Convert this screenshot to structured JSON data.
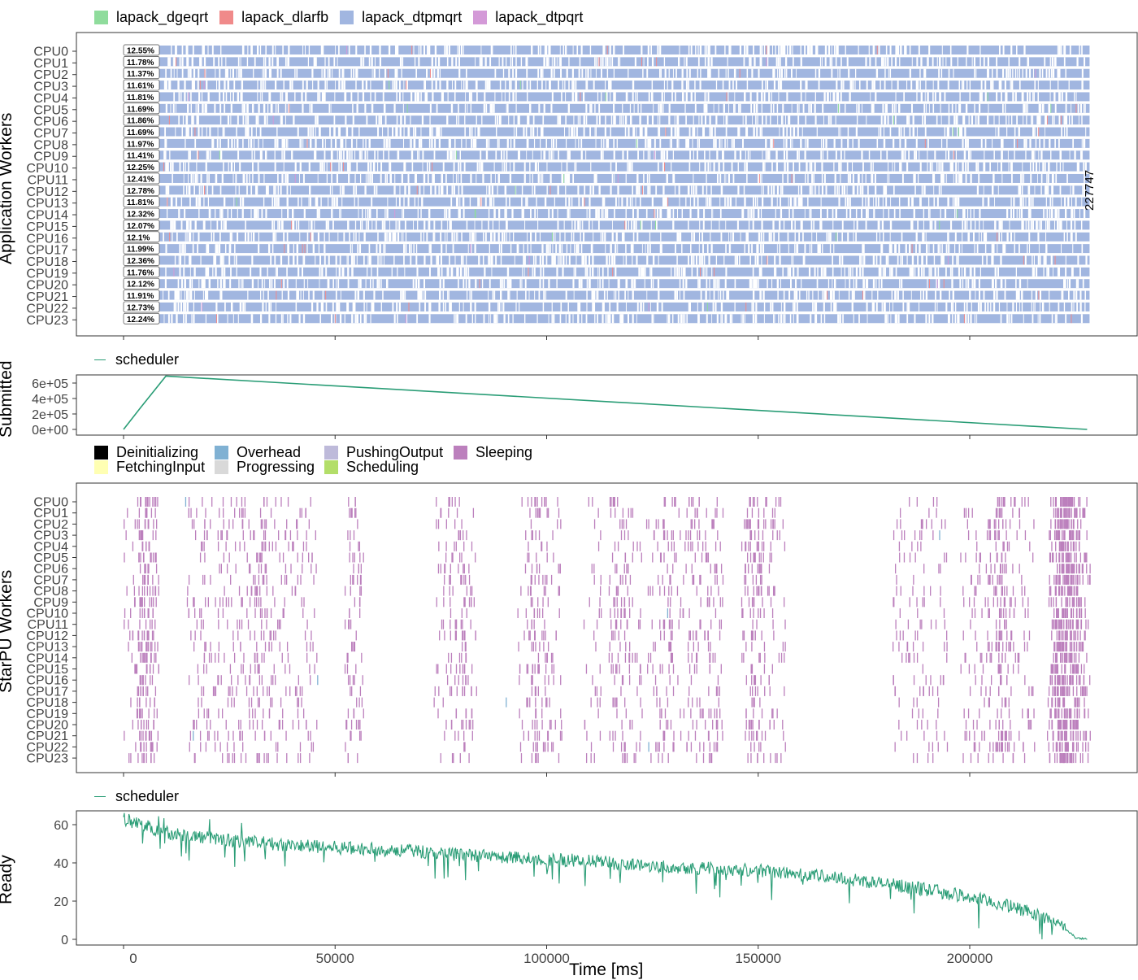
{
  "colors": {
    "lapack_dgeqrt": "#8fdc9c",
    "lapack_dlarfb": "#f08a8a",
    "lapack_dtpmqrt": "#a1b6e0",
    "lapack_dtpqrt": "#d49ad8",
    "scheduler": "#2a9d76",
    "Deinitializing": "#000000",
    "FetchingInput": "#ffffb3",
    "Overhead": "#80b1d3",
    "Progressing": "#d9d9d9",
    "PushingOutput": "#bebada",
    "Scheduling": "#b3de69",
    "Sleeping": "#bc80bd"
  },
  "legend_app": [
    "lapack_dgeqrt",
    "lapack_dlarfb",
    "lapack_dtpmqrt",
    "lapack_dtpqrt"
  ],
  "legend_scheduler_1": "scheduler",
  "legend_scheduler_2": "scheduler",
  "legend_states": [
    "Deinitializing",
    "Overhead",
    "PushingOutput",
    "Sleeping",
    "FetchingInput",
    "Progressing",
    "Scheduling"
  ],
  "chart_data": [
    {
      "type": "gantt",
      "ylabel": "Application Workers",
      "workers": [
        "CPU0",
        "CPU1",
        "CPU2",
        "CPU3",
        "CPU4",
        "CPU5",
        "CPU6",
        "CPU7",
        "CPU8",
        "CPU9",
        "CPU10",
        "CPU11",
        "CPU12",
        "CPU13",
        "CPU14",
        "CPU15",
        "CPU16",
        "CPU17",
        "CPU18",
        "CPU19",
        "CPU20",
        "CPU21",
        "CPU22",
        "CPU23"
      ],
      "idle_labels": [
        "12.55%",
        "11.78%",
        "11.37%",
        "11.61%",
        "11.81%",
        "11.69%",
        "11.86%",
        "11.69%",
        "11.97%",
        "11.41%",
        "12.25%",
        "12.41%",
        "12.78%",
        "11.81%",
        "12.32%",
        "12.07%",
        "12.1%",
        "11.99%",
        "12.36%",
        "11.76%",
        "12.12%",
        "11.91%",
        "12.73%",
        "12.24%"
      ],
      "dominant_task": "lapack_dtpmqrt",
      "xlim": [
        0,
        227747
      ],
      "makespan_label": "227747"
    },
    {
      "type": "line",
      "ylabel": "Submitted",
      "series": [
        {
          "name": "scheduler",
          "points": [
            [
              0,
              0
            ],
            [
              4000,
              280000
            ],
            [
              10000,
              690000
            ],
            [
              227747,
              0
            ]
          ]
        }
      ],
      "yticks": [
        "0e+00",
        "2e+05",
        "4e+05",
        "6e+05"
      ],
      "ylim": [
        0,
        690000
      ]
    },
    {
      "type": "gantt",
      "ylabel": "StarPU Workers",
      "workers": [
        "CPU0",
        "CPU1",
        "CPU2",
        "CPU3",
        "CPU4",
        "CPU5",
        "CPU6",
        "CPU7",
        "CPU8",
        "CPU9",
        "CPU10",
        "CPU11",
        "CPU12",
        "CPU13",
        "CPU14",
        "CPU15",
        "CPU16",
        "CPU17",
        "CPU18",
        "CPU19",
        "CPU20",
        "CPU21",
        "CPU22",
        "CPU23"
      ],
      "dominant_state": "Sleeping"
    },
    {
      "type": "line",
      "ylabel": "Ready",
      "xlabel": "Time [ms]",
      "series": [
        {
          "name": "scheduler",
          "points": [
            [
              0,
              63
            ],
            [
              10000,
              56
            ],
            [
              20000,
              53
            ],
            [
              30000,
              51
            ],
            [
              40000,
              49
            ],
            [
              50000,
              48
            ],
            [
              60000,
              47
            ],
            [
              70000,
              46
            ],
            [
              80000,
              44
            ],
            [
              90000,
              43
            ],
            [
              100000,
              42
            ],
            [
              110000,
              41
            ],
            [
              120000,
              39
            ],
            [
              130000,
              38
            ],
            [
              140000,
              37
            ],
            [
              150000,
              36
            ],
            [
              160000,
              34
            ],
            [
              170000,
              32
            ],
            [
              180000,
              29
            ],
            [
              190000,
              26
            ],
            [
              200000,
              22
            ],
            [
              210000,
              17
            ],
            [
              220000,
              10
            ],
            [
              225000,
              1
            ],
            [
              227747,
              0
            ]
          ]
        }
      ],
      "yticks": [
        "0",
        "20",
        "40",
        "60"
      ],
      "ylim": [
        -1,
        66
      ],
      "xticks": [
        "0",
        "50000",
        "100000",
        "150000",
        "200000"
      ]
    }
  ]
}
